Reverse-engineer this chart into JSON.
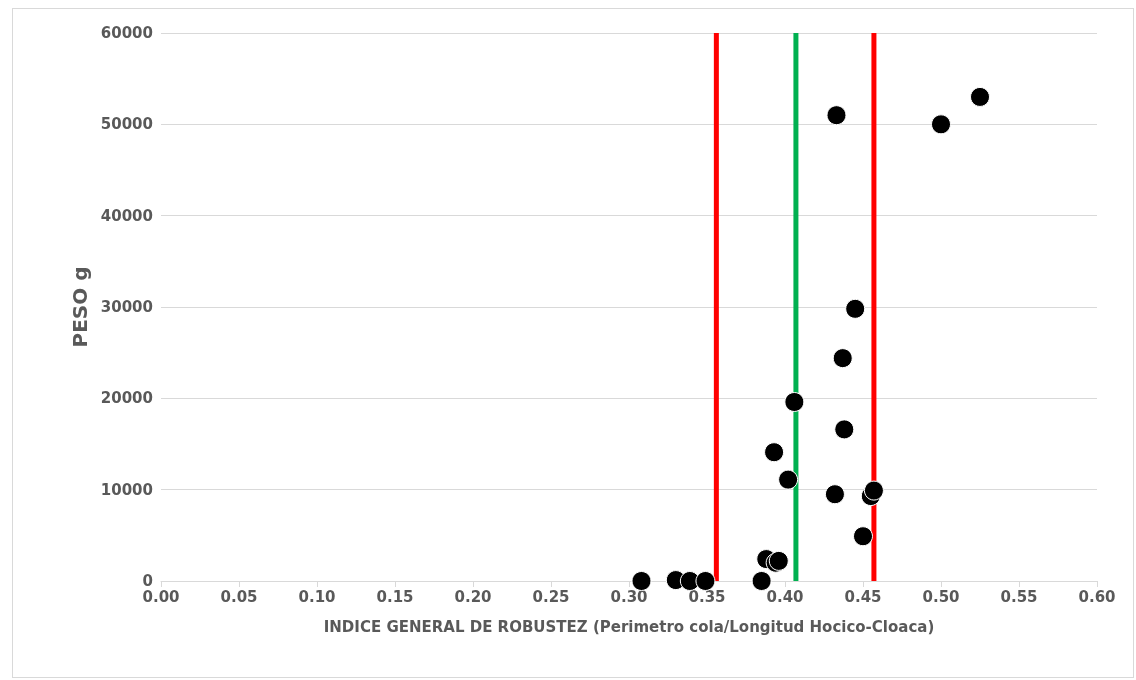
{
  "chart_data": {
    "type": "scatter",
    "xlabel": "INDICE GENERAL DE ROBUSTEZ (Perimetro cola/Longitud Hocico-Cloaca)",
    "ylabel": "PESO g",
    "x": [
      0.308,
      0.33,
      0.339,
      0.349,
      0.385,
      0.388,
      0.394,
      0.396,
      0.393,
      0.402,
      0.406,
      0.432,
      0.433,
      0.437,
      0.438,
      0.445,
      0.45,
      0.455,
      0.457,
      0.5,
      0.525
    ],
    "series": [
      {
        "color": "#000000",
        "values": [
          0,
          100,
          0,
          0,
          0,
          2400,
          2000,
          2200,
          14100,
          11100,
          19600,
          9500,
          51000,
          24400,
          16600,
          29800,
          4900,
          9300,
          9900,
          50000,
          53000
        ]
      }
    ],
    "marker": "circle",
    "xlim": [
      0,
      0.6
    ],
    "xticks": [
      {
        "value": 0,
        "label": "0.00"
      },
      {
        "value": 0.05,
        "label": "0.05"
      },
      {
        "value": 0.1,
        "label": "0.10"
      },
      {
        "value": 0.15,
        "label": "0.15"
      },
      {
        "value": 0.2,
        "label": "0.20"
      },
      {
        "value": 0.25,
        "label": "0.25"
      },
      {
        "value": 0.3,
        "label": "0.30"
      },
      {
        "value": 0.35,
        "label": "0.35"
      },
      {
        "value": 0.4,
        "label": "0.40"
      },
      {
        "value": 0.45,
        "label": "0.45"
      },
      {
        "value": 0.5,
        "label": "0.50"
      },
      {
        "value": 0.55,
        "label": "0.55"
      },
      {
        "value": 0.6,
        "label": "0.60"
      }
    ],
    "ylim": [
      0,
      60000
    ],
    "yticks": [
      0,
      10000,
      20000,
      30000,
      40000,
      50000,
      60000
    ],
    "grid": "y",
    "ref_lines": [
      {
        "axis": "x",
        "value": 0.356,
        "color": "#ff0000"
      },
      {
        "axis": "x",
        "value": 0.407,
        "color": "#00b050"
      },
      {
        "axis": "x",
        "value": 0.457,
        "color": "#ff0000"
      }
    ]
  }
}
